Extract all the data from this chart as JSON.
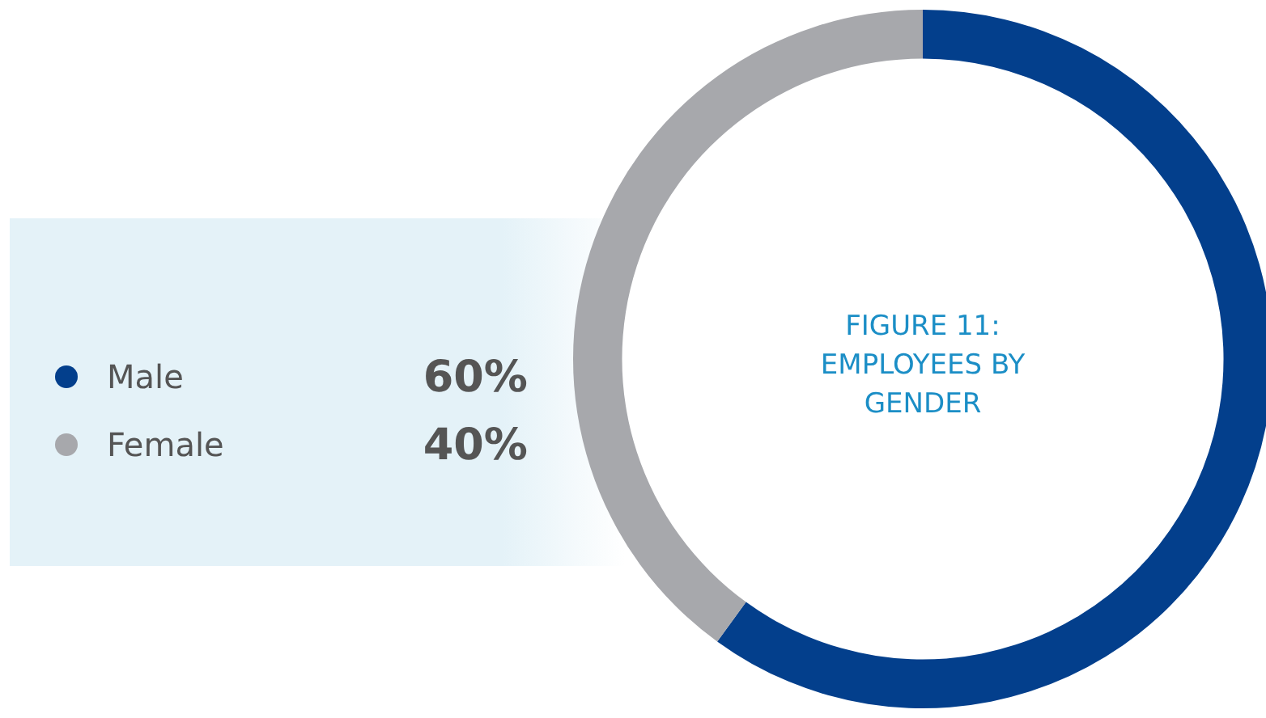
{
  "chart_data": {
    "type": "donut",
    "title": "FIGURE 11: EMPLOYEES BY GENDER",
    "categories": [
      "Male",
      "Female"
    ],
    "values": [
      60,
      40
    ],
    "colors": [
      "#033f8c",
      "#a7a8ac"
    ],
    "value_labels": [
      "60%",
      "40%"
    ],
    "legend": "left"
  }
}
